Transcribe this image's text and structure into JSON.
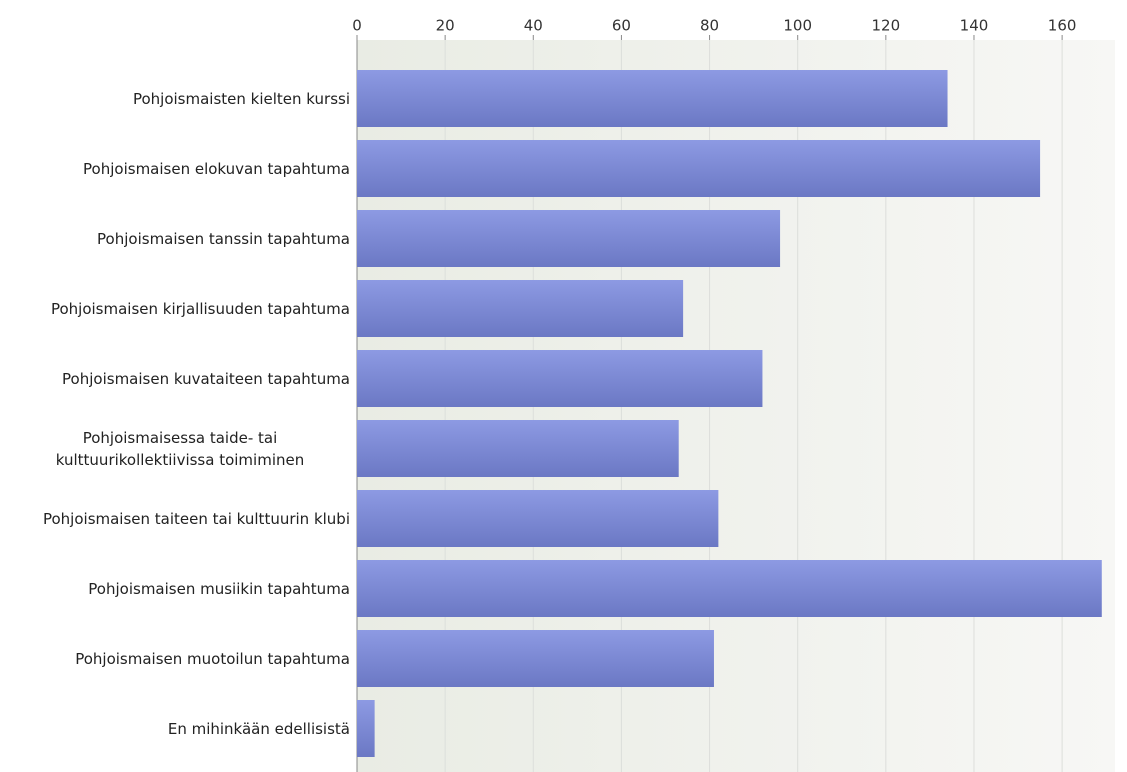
{
  "chart_data": {
    "type": "bar",
    "orientation": "horizontal",
    "categories": [
      "Pohjoismaisten kielten kurssi",
      "Pohjoismaisen elokuvan tapahtuma",
      "Pohjoismaisen tanssin tapahtuma",
      "Pohjoismaisen kirjallisuuden tapahtuma",
      "Pohjoismaisen kuvataiteen tapahtuma",
      "Pohjoismaisessa taide- tai kulttuurikollektiivissa toimiminen",
      "Pohjoismaisen taiteen tai kulttuurin klubi",
      "Pohjoismaisen musiikin tapahtuma",
      "Pohjoismaisen muotoilun tapahtuma",
      "En mihinkään edellisistä"
    ],
    "values": [
      134,
      155,
      96,
      74,
      92,
      73,
      82,
      169,
      81,
      4
    ],
    "color": "#7e8bd8",
    "xlim": [
      0,
      172
    ],
    "xticks": [
      0,
      20,
      40,
      60,
      80,
      100,
      120,
      140,
      160
    ],
    "grid": true
  }
}
